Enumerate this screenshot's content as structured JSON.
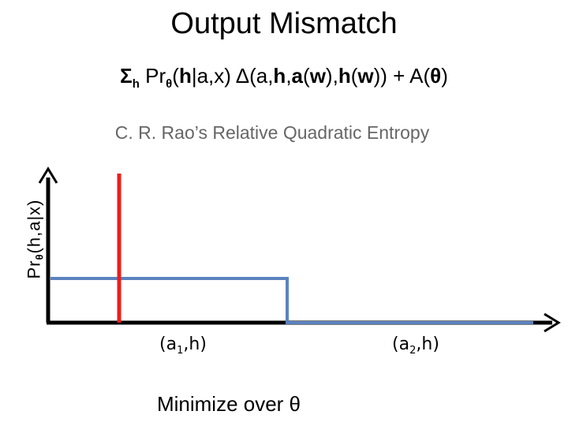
{
  "title": "Output Mismatch",
  "formula": {
    "sigma": "Σ",
    "sigma_sub": "h",
    "pr": "Pr",
    "pr_sub": "θ",
    "open_paren": "(",
    "h": "h",
    "bar_a": "|a,x)  Δ(a,",
    "h2": "h",
    "comma1": ",",
    "a": "a",
    "open_w1": "(",
    "w1": "w",
    "close_w1": "),",
    "h3": "h",
    "open_w2": "(",
    "w2": "w",
    "close_tail": ")) + A(",
    "theta": "θ",
    "close": ")"
  },
  "subtitle": "C. R. Rao’s Relative Quadratic Entropy",
  "ylabel": {
    "pr": "Pr",
    "sub": "θ",
    "rest": "(h,a|x)"
  },
  "xlabels": [
    {
      "open": "(a",
      "sub": "1",
      "close": ",h)"
    },
    {
      "open": "(a",
      "sub": "2",
      "close": ",h)"
    }
  ],
  "bottom_label": "Minimize over θ",
  "colors": {
    "axis": "#000000",
    "red_line": "#ee1c1c",
    "blue_line": "#5b82bf",
    "subtitle": "#666666"
  },
  "icons": {
    "x_arrow": "arrow-right-icon",
    "y_arrow": "arrow-up-icon"
  }
}
